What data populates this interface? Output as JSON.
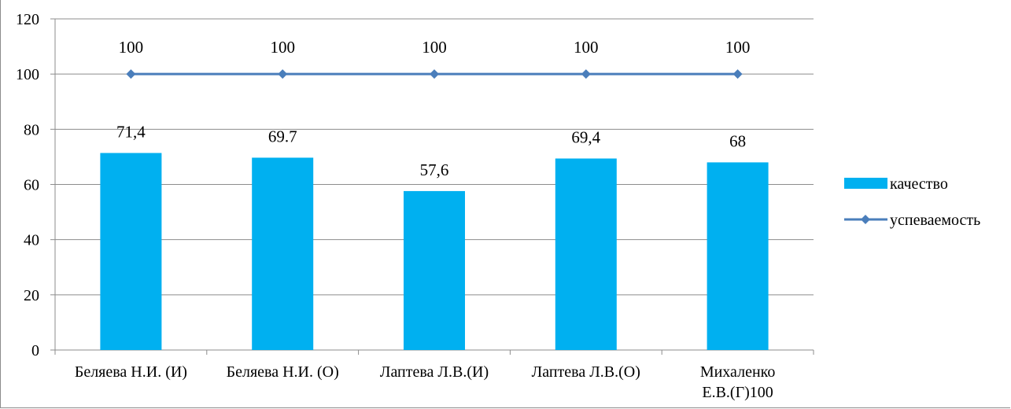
{
  "chart_data": {
    "type": "bar",
    "categories": [
      [
        "Беляева Н.И. (И)"
      ],
      [
        "Беляева Н.И. (О)"
      ],
      [
        "Лаптева Л.В.(И)"
      ],
      [
        "Лаптева Л.В.(О)"
      ],
      [
        "Михаленко",
        "Е.В.(Г)100"
      ]
    ],
    "series": [
      {
        "name": "качество",
        "kind": "bar",
        "color": "#00b0f0",
        "values": [
          71.4,
          69.7,
          57.6,
          69.4,
          68
        ],
        "labels": [
          "71,4",
          "69.7",
          "57,6",
          "69,4",
          "68"
        ]
      },
      {
        "name": "успеваемость",
        "kind": "line",
        "color": "#4a7ebb",
        "marker": "diamond",
        "values": [
          100,
          100,
          100,
          100,
          100
        ],
        "labels": [
          "100",
          "100",
          "100",
          "100",
          "100"
        ]
      }
    ],
    "ylim": [
      0,
      120
    ],
    "yticks": [
      0,
      20,
      40,
      60,
      80,
      100,
      120
    ],
    "grid": true,
    "legend": "right",
    "title": "",
    "xlabel": "",
    "ylabel": ""
  }
}
